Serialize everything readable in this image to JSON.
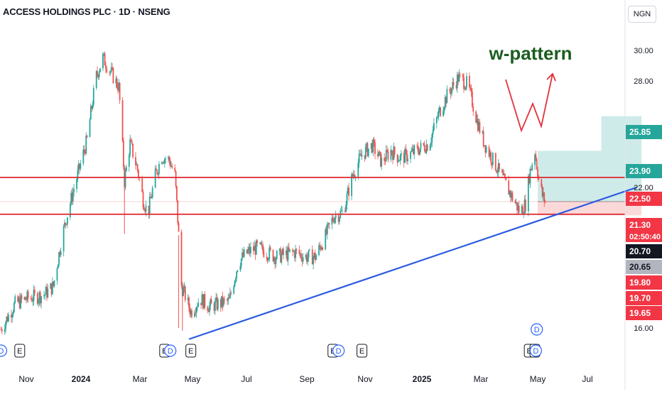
{
  "header": {
    "symbol_title": "ACCESS HOLDINGS PLC · 1D · NSENG",
    "currency": "NGN"
  },
  "colors": {
    "up": "#26a69a",
    "down": "#ef5350",
    "support": "#e0323b",
    "trendline": "#2a5be0",
    "annotation_text": "#1b5e20",
    "annotation_arrow": "#e0323b",
    "target_zone": "#26a69a",
    "stop_zone": "#ef5350"
  },
  "annotation": {
    "text": "w-pattern"
  },
  "chart_data": {
    "type": "candlestick",
    "title": "ACCESS HOLDINGS PLC · 1D · NSENG",
    "price_scale": "log",
    "ylim": [
      15.7,
      31.4
    ],
    "x_ticks": [
      "Nov",
      "2024",
      "Mar",
      "May",
      "Jul",
      "Sep",
      "Nov",
      "2025",
      "Mar",
      "May",
      "Jul"
    ],
    "y_ticks": [
      16.0,
      22.0,
      28.0,
      30.0
    ],
    "price_labels": [
      {
        "text": "25.85",
        "value": 25.85,
        "style": "green"
      },
      {
        "text": "23.90",
        "value": 23.9,
        "style": "green"
      },
      {
        "text": "22.50",
        "value": 22.5,
        "style": "red"
      },
      {
        "text": "21.30",
        "value": 21.3,
        "style": "red"
      },
      {
        "text": "02:50:40",
        "value": 21.3,
        "style": "red-sub"
      },
      {
        "text": "20.70",
        "value": 20.7,
        "style": "dark"
      },
      {
        "text": "20.65",
        "value": 20.65,
        "style": "grey"
      },
      {
        "text": "19.80",
        "value": 19.8,
        "style": "red"
      },
      {
        "text": "19.70",
        "value": 19.7,
        "style": "red"
      },
      {
        "text": "19.65",
        "value": 19.65,
        "style": "red"
      }
    ],
    "horizontal_lines": [
      {
        "name": "resistance",
        "value": 22.5
      },
      {
        "name": "support",
        "value": 20.7
      }
    ],
    "trendline": {
      "from": {
        "date": "2024-04-23",
        "price": 15.6
      },
      "to": {
        "date": "2025-08-15",
        "price": 22.0
      }
    },
    "position": {
      "entry": 21.3,
      "target_1": 23.9,
      "target_2": 25.85,
      "stop": 20.65
    },
    "event_markers": [
      {
        "date": "2023-10-05",
        "kind": "D"
      },
      {
        "date": "2023-10-25",
        "kind": "E"
      },
      {
        "date": "2024-03-28",
        "kind": "E"
      },
      {
        "date": "2024-04-03",
        "kind": "D"
      },
      {
        "date": "2024-04-25",
        "kind": "E"
      },
      {
        "date": "2024-09-24",
        "kind": "E"
      },
      {
        "date": "2024-09-30",
        "kind": "D"
      },
      {
        "date": "2024-10-25",
        "kind": "E"
      },
      {
        "date": "2025-04-22",
        "kind": "E"
      },
      {
        "date": "2025-04-28",
        "kind": "E"
      },
      {
        "date": "2025-04-29",
        "kind": "D"
      }
    ],
    "close_series": [
      [
        "2023-10-05",
        15.95
      ],
      [
        "2023-10-20",
        16.9
      ],
      [
        "2023-11-01",
        17.1
      ],
      [
        "2023-11-20",
        17.25
      ],
      [
        "2023-11-30",
        17.6
      ],
      [
        "2023-12-10",
        19.8
      ],
      [
        "2023-12-20",
        21.6
      ],
      [
        "2023-12-28",
        23.0
      ],
      [
        "2024-01-05",
        24.5
      ],
      [
        "2024-01-15",
        28.3
      ],
      [
        "2024-01-22",
        29.5
      ],
      [
        "2024-01-30",
        28.6
      ],
      [
        "2024-02-08",
        27.6
      ],
      [
        "2024-02-14",
        22.3
      ],
      [
        "2024-02-20",
        24.3
      ],
      [
        "2024-02-28",
        22.9
      ],
      [
        "2024-03-05",
        21.4
      ],
      [
        "2024-03-10",
        20.7
      ],
      [
        "2024-03-18",
        22.6
      ],
      [
        "2024-03-25",
        23.6
      ],
      [
        "2024-04-02",
        23.4
      ],
      [
        "2024-04-08",
        22.6
      ],
      [
        "2024-04-15",
        17.6
      ],
      [
        "2024-04-25",
        16.6
      ],
      [
        "2024-05-05",
        17.1
      ],
      [
        "2024-05-15",
        16.8
      ],
      [
        "2024-05-25",
        16.9
      ],
      [
        "2024-06-05",
        17.0
      ],
      [
        "2024-06-15",
        18.6
      ],
      [
        "2024-06-25",
        19.0
      ],
      [
        "2024-07-05",
        19.2
      ],
      [
        "2024-07-15",
        19.0
      ],
      [
        "2024-07-25",
        18.8
      ],
      [
        "2024-08-05",
        18.9
      ],
      [
        "2024-08-15",
        19.0
      ],
      [
        "2024-08-25",
        18.8
      ],
      [
        "2024-09-05",
        18.8
      ],
      [
        "2024-09-15",
        19.6
      ],
      [
        "2024-09-25",
        20.6
      ],
      [
        "2024-10-05",
        20.8
      ],
      [
        "2024-10-15",
        22.6
      ],
      [
        "2024-10-25",
        23.7
      ],
      [
        "2024-11-05",
        24.2
      ],
      [
        "2024-11-15",
        23.3
      ],
      [
        "2024-11-25",
        23.9
      ],
      [
        "2024-12-05",
        23.5
      ],
      [
        "2024-12-15",
        23.7
      ],
      [
        "2024-12-25",
        24.0
      ],
      [
        "2025-01-05",
        24.3
      ],
      [
        "2025-01-15",
        26.0
      ],
      [
        "2025-01-25",
        27.2
      ],
      [
        "2025-02-05",
        28.2
      ],
      [
        "2025-02-15",
        27.8
      ],
      [
        "2025-02-25",
        25.6
      ],
      [
        "2025-03-05",
        24.3
      ],
      [
        "2025-03-15",
        23.3
      ],
      [
        "2025-03-25",
        22.4
      ],
      [
        "2025-04-05",
        21.4
      ],
      [
        "2025-04-12",
        20.8
      ],
      [
        "2025-04-18",
        21.2
      ],
      [
        "2025-04-22",
        22.6
      ],
      [
        "2025-04-28",
        23.9
      ],
      [
        "2025-05-02",
        22.4
      ],
      [
        "2025-05-06",
        21.6
      ],
      [
        "2025-05-09",
        21.3
      ]
    ]
  }
}
